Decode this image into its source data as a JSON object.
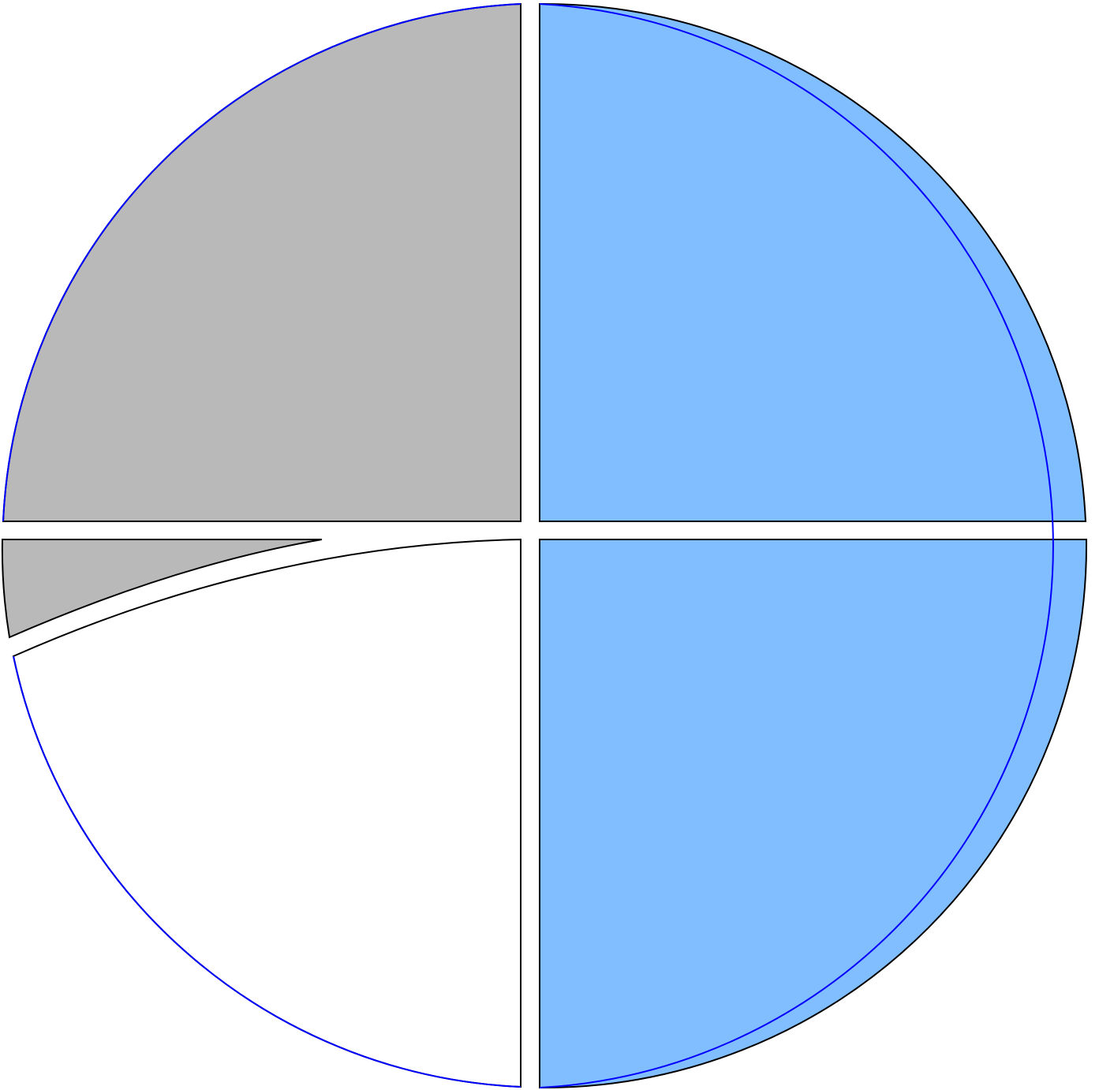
{
  "diagram": {
    "colors": {
      "blue_fill": "#80BEFF",
      "gray_fill": "#B9B9B9",
      "white_fill": "#FFFFFF",
      "outline_circle": "#0000FF",
      "outline_region": "#000000"
    },
    "regions": [
      {
        "name": "blue-region-top-right",
        "fill": "blue_fill"
      },
      {
        "name": "blue-region-bottom-right",
        "fill": "blue_fill"
      },
      {
        "name": "gray-region-top-left",
        "fill": "gray_fill"
      },
      {
        "name": "gray-sliver-left",
        "fill": "gray_fill"
      },
      {
        "name": "white-region-bottom-left",
        "fill": "white_fill"
      }
    ]
  }
}
